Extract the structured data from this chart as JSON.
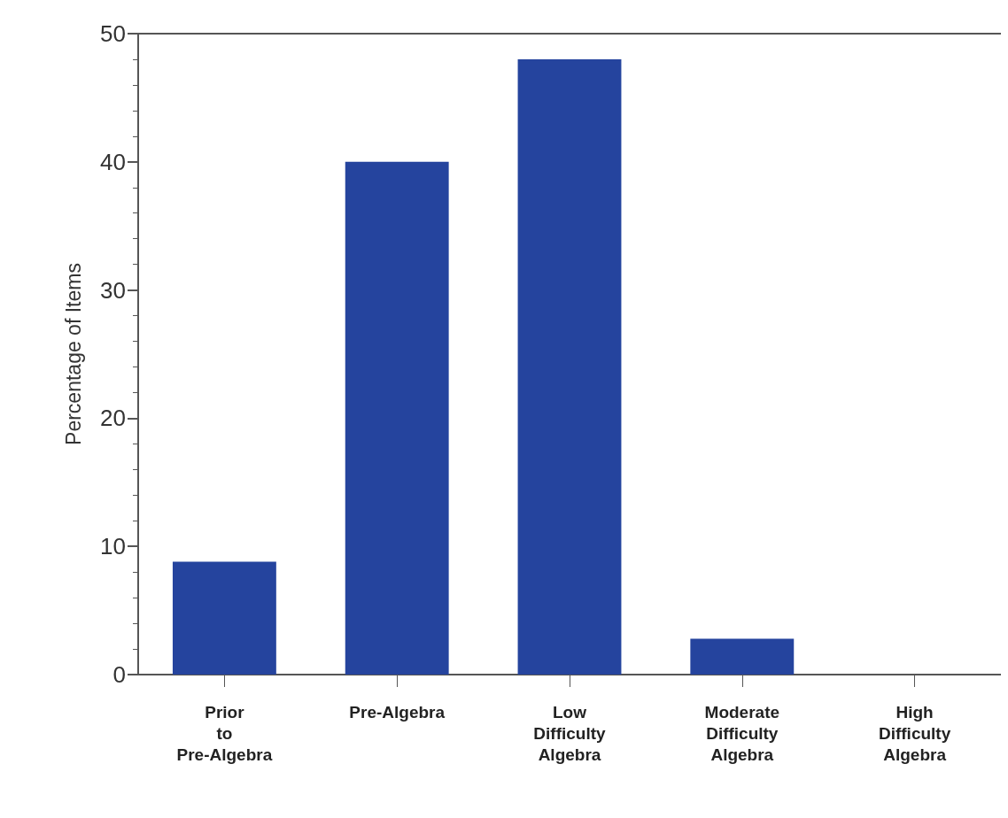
{
  "chart_data": {
    "type": "bar",
    "ylabel": "Percentage of Items",
    "categories": [
      "Prior\nto\nPre-Algebra",
      "Pre-Algebra",
      "Low\nDifficulty\nAlgebra",
      "Moderate\nDifficulty\nAlgebra",
      "High\nDifficulty\nAlgebra"
    ],
    "values": [
      8.8,
      40,
      48,
      2.8,
      0
    ],
    "color": "#25449e",
    "ylim": [
      0,
      50
    ],
    "yticks": [
      0,
      10,
      20,
      30,
      40,
      50
    ],
    "grid": false
  }
}
